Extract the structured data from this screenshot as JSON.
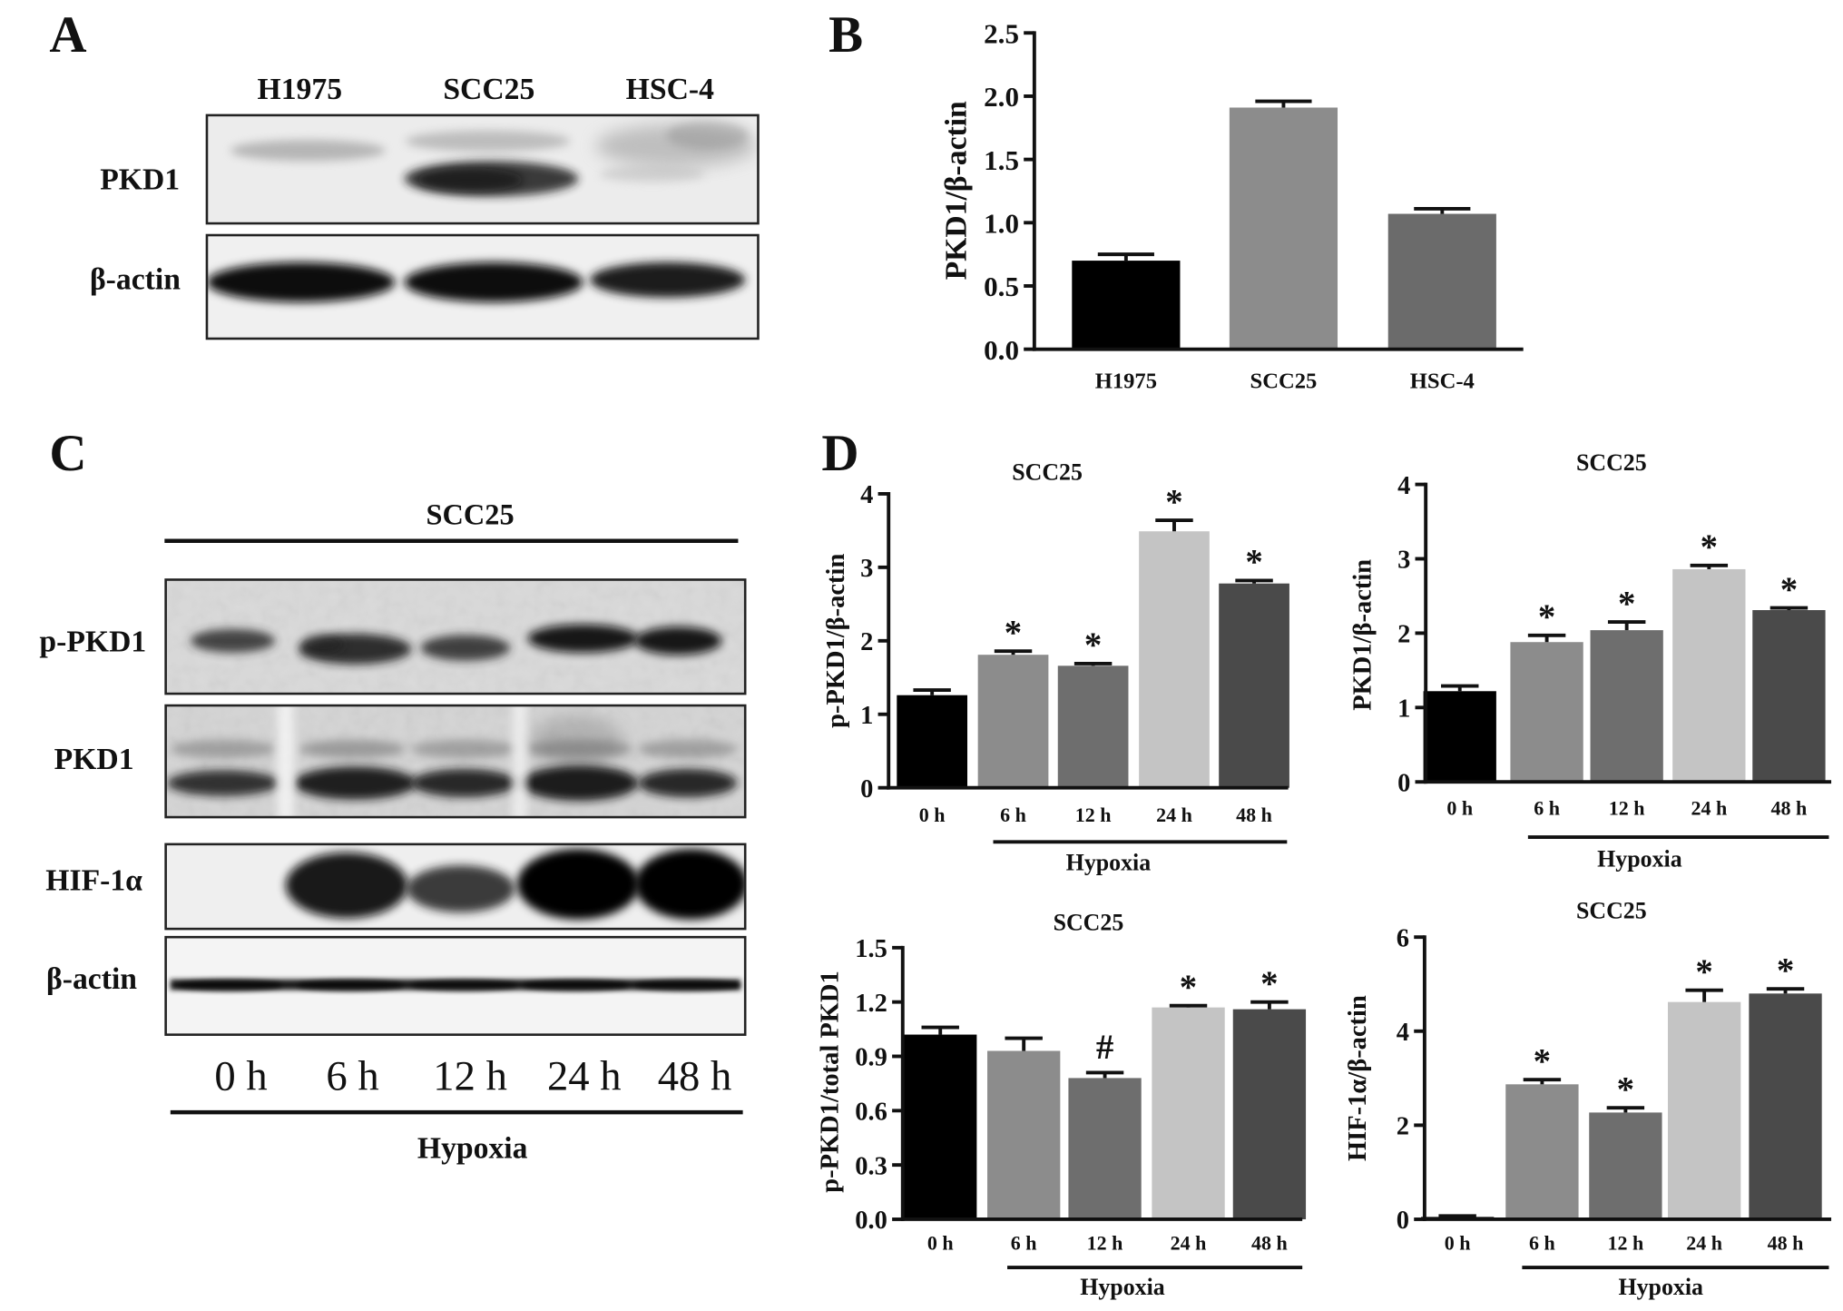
{
  "panels": {
    "a": "A",
    "b": "B",
    "c": "C",
    "d": "D"
  },
  "panel_a": {
    "lanes": [
      "H1975",
      "SCC25",
      "HSC-4"
    ],
    "rows": [
      "PKD1",
      "β-actin"
    ]
  },
  "panel_c": {
    "cell_line": "SCC25",
    "rows": [
      "p-PKD1",
      "PKD1",
      "HIF-1α",
      "β-actin"
    ],
    "timepoints": [
      "0 h",
      "6 h",
      "12 h",
      "24 h",
      "48 h"
    ],
    "condition": "Hypoxia"
  },
  "chart_data": [
    {
      "type": "bar",
      "ylabel": "PKD1/β-actin",
      "categories": [
        "H1975",
        "SCC25",
        "HSC-4"
      ],
      "values": [
        0.7,
        1.91,
        1.07
      ],
      "errors": [
        0.05,
        0.05,
        0.04
      ],
      "annotations": [
        "",
        "",
        ""
      ],
      "ylim": [
        0,
        2.5
      ],
      "yticks": [
        "0.0",
        "0.5",
        "1.0",
        "1.5",
        "2.0",
        "2.5"
      ],
      "colors": [
        "#000000",
        "#8c8c8c",
        "#6b6b6b"
      ],
      "grid": false
    },
    {
      "type": "bar",
      "title": "SCC25",
      "ylabel": "p-PKD1/β-actin",
      "categories": [
        "0 h",
        "6 h",
        "12 h",
        "24 h",
        "48 h"
      ],
      "values": [
        1.26,
        1.81,
        1.66,
        3.49,
        2.78
      ],
      "errors": [
        0.07,
        0.05,
        0.03,
        0.15,
        0.04
      ],
      "annotations": [
        "",
        "*",
        "*",
        "*",
        "*"
      ],
      "ylim": [
        0,
        4
      ],
      "yticks": [
        "0",
        "1",
        "2",
        "3",
        "4"
      ],
      "group": {
        "label": "Hypoxia",
        "category_range": [
          1,
          4
        ]
      },
      "colors": [
        "#000000",
        "#8c8c8c",
        "#6e6e6e",
        "#c4c4c4",
        "#4a4a4a"
      ],
      "grid": false
    },
    {
      "type": "bar",
      "title": "SCC25",
      "ylabel": "PKD1/β-actin",
      "categories": [
        "0 h",
        "6 h",
        "12 h",
        "24 h",
        "48 h"
      ],
      "values": [
        1.22,
        1.88,
        2.04,
        2.86,
        2.31
      ],
      "errors": [
        0.07,
        0.09,
        0.11,
        0.05,
        0.03
      ],
      "annotations": [
        "",
        "*",
        "*",
        "*",
        "*"
      ],
      "ylim": [
        0,
        4
      ],
      "yticks": [
        "0",
        "1",
        "2",
        "3",
        "4"
      ],
      "group": {
        "label": "Hypoxia",
        "category_range": [
          1,
          4
        ]
      },
      "colors": [
        "#000000",
        "#8c8c8c",
        "#6e6e6e",
        "#c4c4c4",
        "#4a4a4a"
      ],
      "grid": false
    },
    {
      "type": "bar",
      "title": "SCC25",
      "ylabel": "p-PKD1/total PKD1",
      "categories": [
        "0 h",
        "6 h",
        "12 h",
        "24 h",
        "48 h"
      ],
      "values": [
        1.02,
        0.93,
        0.78,
        1.17,
        1.16
      ],
      "errors": [
        0.04,
        0.07,
        0.03,
        0.01,
        0.04
      ],
      "annotations": [
        "",
        "",
        "#",
        "*",
        "*"
      ],
      "ylim": [
        0,
        1.5
      ],
      "yticks": [
        "0.0",
        "0.3",
        "0.6",
        "0.9",
        "1.2",
        "1.5"
      ],
      "group": {
        "label": "Hypoxia",
        "category_range": [
          1,
          4
        ]
      },
      "colors": [
        "#000000",
        "#8c8c8c",
        "#6e6e6e",
        "#c4c4c4",
        "#4a4a4a"
      ],
      "grid": false
    },
    {
      "type": "bar",
      "title": "SCC25",
      "ylabel": "HIF-1α/β-actin",
      "categories": [
        "0 h",
        "6 h",
        "12 h",
        "24 h",
        "48 h"
      ],
      "values": [
        0.05,
        2.87,
        2.27,
        4.62,
        4.8
      ],
      "errors": [
        0.02,
        0.1,
        0.1,
        0.25,
        0.1
      ],
      "annotations": [
        "",
        "*",
        "*",
        "*",
        "*"
      ],
      "ylim": [
        0,
        6
      ],
      "yticks": [
        "0",
        "2",
        "4",
        "6"
      ],
      "group": {
        "label": "Hypoxia",
        "category_range": [
          1,
          4
        ]
      },
      "colors": [
        "#000000",
        "#8c8c8c",
        "#6e6e6e",
        "#c4c4c4",
        "#4a4a4a"
      ],
      "grid": false
    }
  ]
}
